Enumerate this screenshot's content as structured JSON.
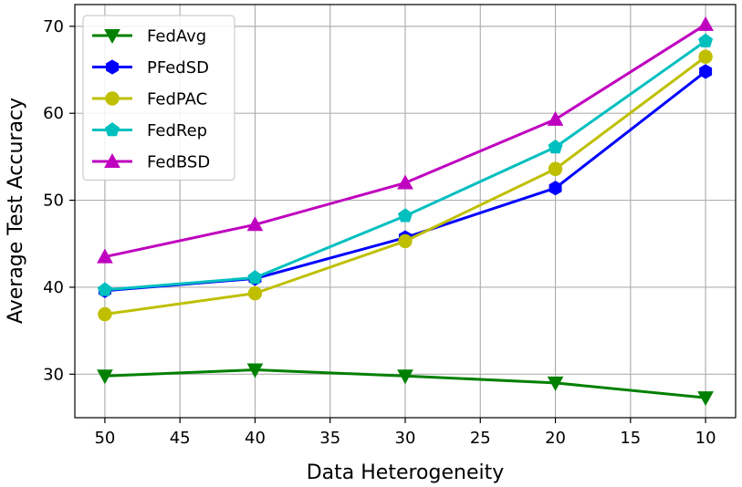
{
  "chart_data": {
    "type": "line",
    "xlabel": "Data Heterogeneity",
    "ylabel": "Average Test Accuracy",
    "x": [
      50,
      40,
      30,
      20,
      10
    ],
    "xlim": [
      52,
      8
    ],
    "ylim": [
      25.0,
      72.5
    ],
    "xticks": [
      50,
      45,
      40,
      35,
      30,
      25,
      20,
      15,
      10
    ],
    "yticks": [
      30,
      40,
      50,
      60,
      70
    ],
    "grid": true,
    "legend_position": "top-left",
    "series": [
      {
        "name": "FedAvg",
        "color": "#008000",
        "marker": "triangle-down",
        "values": [
          29.8,
          30.5,
          29.8,
          29.0,
          27.3
        ]
      },
      {
        "name": "PFedSD",
        "color": "#0000ff",
        "marker": "hexagon",
        "values": [
          39.6,
          41.0,
          45.7,
          51.4,
          64.8
        ]
      },
      {
        "name": "FedPAC",
        "color": "#bfbf00",
        "marker": "circle",
        "values": [
          36.9,
          39.3,
          45.3,
          53.6,
          66.5
        ]
      },
      {
        "name": "FedRep",
        "color": "#00bfbf",
        "marker": "pentagon",
        "values": [
          39.7,
          41.1,
          48.2,
          56.1,
          68.3
        ]
      },
      {
        "name": "FedBSD",
        "color": "#bf00bf",
        "marker": "triangle-up",
        "values": [
          43.5,
          47.2,
          52.0,
          59.3,
          70.2
        ]
      }
    ]
  }
}
